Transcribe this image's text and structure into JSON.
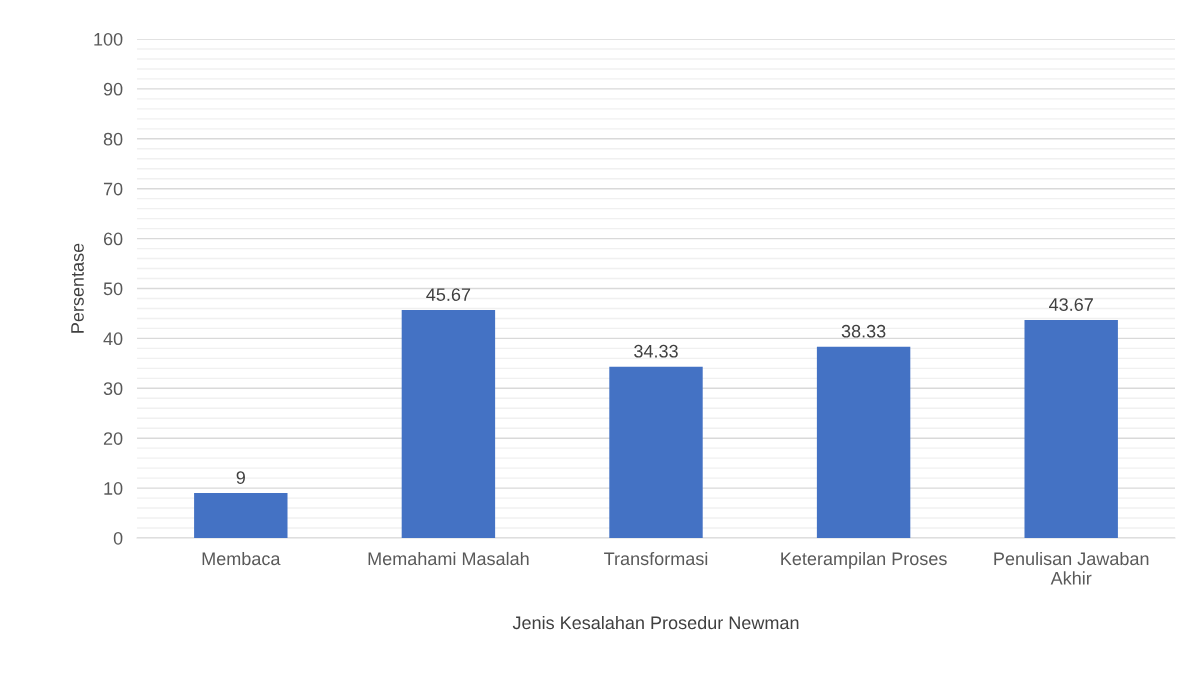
{
  "chart_data": {
    "type": "bar",
    "xlabel": "Jenis Kesalahan Prosedur Newman",
    "ylabel": "Persentase",
    "categories": [
      "Membaca",
      "Memahami Masalah",
      "Transformasi",
      "Keterampilan Proses",
      "Penulisan Jawaban\nAkhir"
    ],
    "values": [
      9,
      45.67,
      34.33,
      38.33,
      43.67
    ],
    "color": "#4472c4",
    "ylim": [
      0,
      100
    ],
    "yticks": [
      0,
      10,
      20,
      30,
      40,
      50,
      60,
      70,
      80,
      90,
      100
    ],
    "grid": "y",
    "data_labels": true
  }
}
